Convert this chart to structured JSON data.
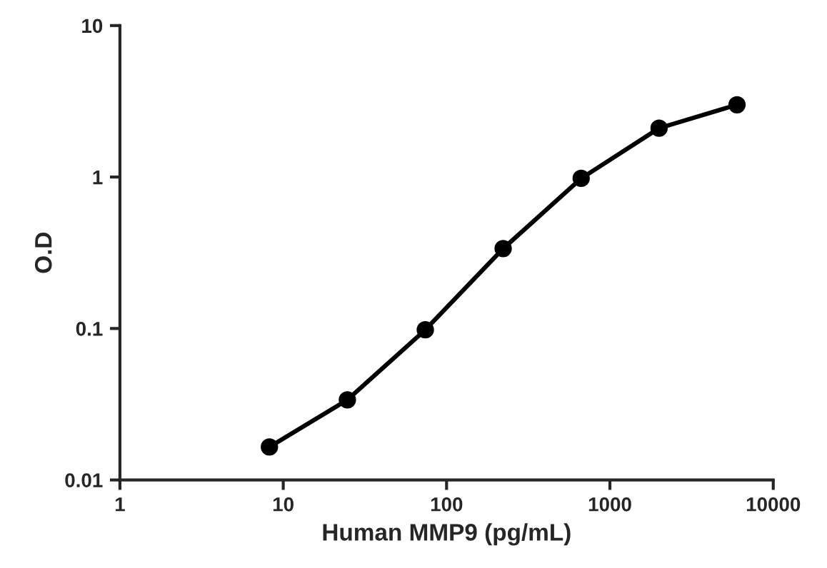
{
  "chart_data": {
    "type": "line",
    "xlabel": "Human MMP9 (pg/mL)",
    "ylabel": "O.D",
    "log": "xy",
    "x": [
      8.23,
      24.7,
      74.1,
      222,
      667,
      2000,
      6000
    ],
    "series": [
      {
        "color": "#000000",
        "values": [
          0.0165,
          0.0338,
          0.098,
          0.337,
          0.98,
          2.1,
          3.0
        ]
      }
    ],
    "xlim": [
      1,
      10000
    ],
    "xticks": [
      1,
      10,
      100,
      1000,
      10000
    ],
    "ylim": [
      0.01,
      10
    ],
    "yticks": [
      0.01,
      0.1,
      1,
      10
    ],
    "marker": "circle",
    "line_style": "solid"
  }
}
